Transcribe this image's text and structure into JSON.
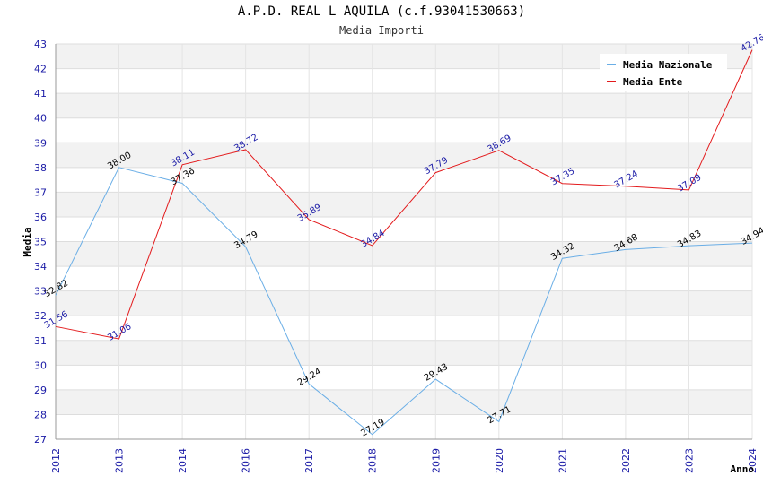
{
  "chart_data": {
    "type": "line",
    "title": "A.P.D. REAL L AQUILA (c.f.93041530663)",
    "subtitle": "Media Importi",
    "xlabel": "Anno",
    "ylabel": "Media",
    "ylim": [
      27,
      43
    ],
    "grid": true,
    "legend_position": "top-right",
    "x": [
      "2012",
      "2013",
      "2014",
      "2016",
      "2017",
      "2018",
      "2019",
      "2020",
      "2021",
      "2022",
      "2023",
      "2024"
    ],
    "series": [
      {
        "name": "Media Nazionale",
        "color": "#6aaee6",
        "label_color": "#000000",
        "values": [
          32.82,
          38.0,
          37.36,
          34.79,
          29.24,
          27.19,
          29.43,
          27.71,
          34.32,
          34.68,
          34.83,
          34.94
        ],
        "labels": [
          "32.82",
          "38.00",
          "37.36",
          "34.79",
          "29.24",
          "27.19",
          "29.43",
          "27.71",
          "34.32",
          "34.68",
          "34.83",
          "34.94"
        ]
      },
      {
        "name": "Media Ente",
        "color": "#e31a1c",
        "label_color": "#1a1aa6",
        "values": [
          31.56,
          31.06,
          38.11,
          38.72,
          35.89,
          34.84,
          37.79,
          38.69,
          37.35,
          37.24,
          37.09,
          42.76
        ],
        "labels": [
          "31.56",
          "31.06",
          "38.11",
          "38.72",
          "35.89",
          "34.84",
          "37.79",
          "38.69",
          "37.35",
          "37.24",
          "37.09",
          "42.76"
        ]
      }
    ],
    "yticks": [
      "27",
      "28",
      "29",
      "30",
      "31",
      "32",
      "33",
      "34",
      "35",
      "36",
      "37",
      "38",
      "39",
      "40",
      "41",
      "42",
      "43"
    ]
  }
}
